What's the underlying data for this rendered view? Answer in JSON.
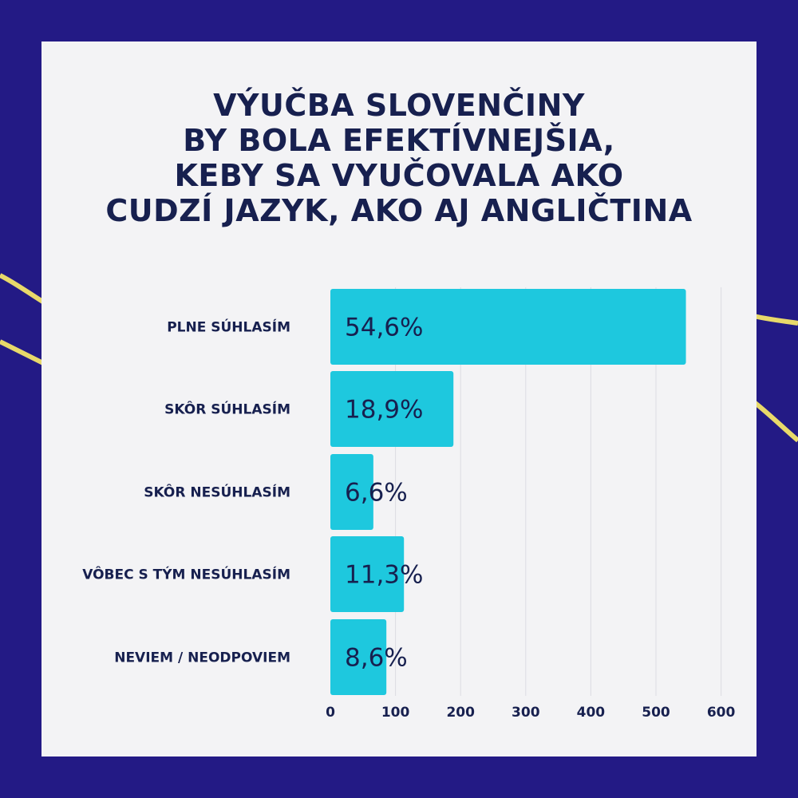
{
  "colors": {
    "background": "#231a85",
    "card": "#f3f3f5",
    "bar": "#1ec8de",
    "text": "#17204f",
    "accent_line": "#e8d96a"
  },
  "title_lines": [
    "VÝUČBA SLOVENČINY",
    "BY BOLA EFEKTÍVNEJŠIA,",
    "KEBY SA VYUČOVALA AKO",
    "CUDZÍ JAZYK, AKO AJ ANGLIČTINA"
  ],
  "chart_data": {
    "type": "bar",
    "orientation": "horizontal",
    "title": "VÝUČBA SLOVENČINY BY BOLA EFEKTÍVNEJŠIA, KEBY SA VYUČOVALA AKO CUDZÍ JAZYK, AKO AJ ANGLIČTINA",
    "categories": [
      "PLNE SÚHLASÍM",
      "SKÔR SÚHLASÍM",
      "SKÔR NESÚHLASÍM",
      "VÔBEC S TÝM NESÚHLASÍM",
      "NEVIEM / NEODPOVIEM"
    ],
    "values": [
      546,
      189,
      66,
      113,
      86
    ],
    "data_labels": [
      "54,6%",
      "18,9%",
      "6,6%",
      "11,3%",
      "8,6%"
    ],
    "x_ticks": [
      "0",
      "100",
      "200",
      "300",
      "400",
      "500",
      "600"
    ],
    "xlim": [
      0,
      600
    ],
    "grid": true,
    "legend": "none"
  }
}
